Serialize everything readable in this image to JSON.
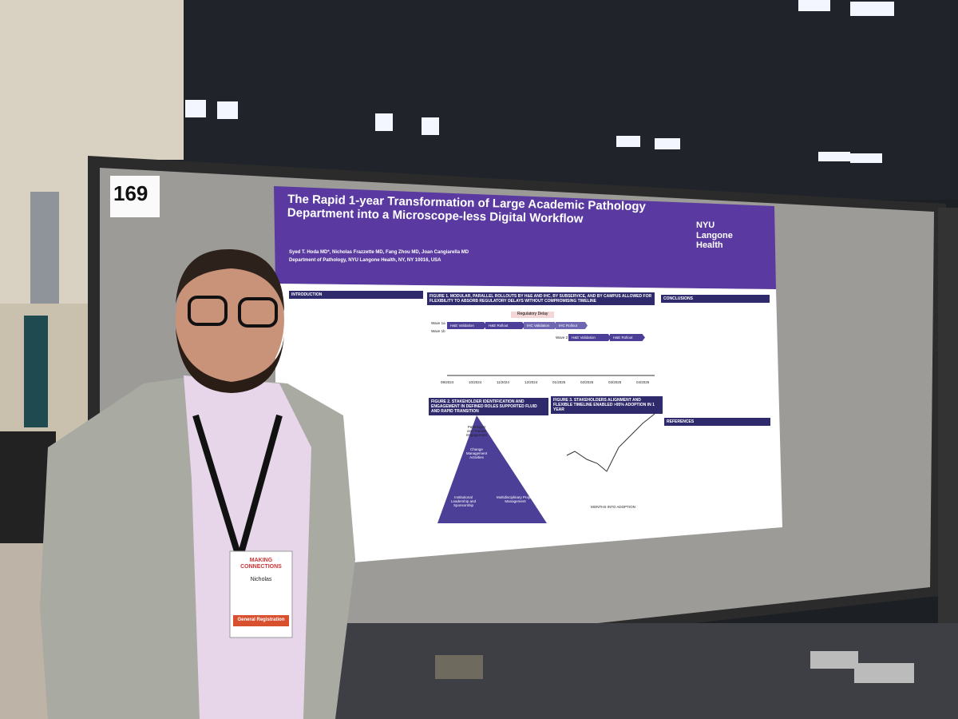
{
  "board_number": "169",
  "poster": {
    "title": "The Rapid 1-year Transformation of Large Academic Pathology Department into a Microscope-less Digital Workflow",
    "authors": "Syed T. Hoda MD*, Nicholas Frazzette MD, Fang Zhou MD, Joan Cangiarella MD",
    "affiliation": "Department of Pathology, NYU Langone Health, NY, NY 10016, USA",
    "logo": "NYU Langone Health",
    "sections": {
      "introduction": "INTRODUCTION",
      "figure1": "FIGURE 1. MODULAR, PARALLEL ROLLOUTS BY H&E AND IHC, BY SUBSERVICE, AND BY CAMPUS ALLOWED FOR FLEXIBILITY TO ABSORB REGULATORY DELAYS WITHOUT COMPROMISING TIMELINE",
      "figure2": "FIGURE 2. STAKEHOLDER IDENTIFICATION AND ENGAGEMENT IN DEFINED ROLES SUPPORTED FLUID AND RAPID TRANSITION",
      "figure3": "FIGURE 3. STAKEHOLDERS ALIGNMENT AND FLEXIBLE TIMELINE ENABLED >95% ADOPTION IN 1 YEAR",
      "conclusions": "CONCLUSIONS",
      "references": "REFERENCES"
    },
    "gantt": {
      "delay": "Regulatory Delay",
      "wave1a": "Wave 1a",
      "wave1b": "Wave 1b",
      "wave2": "Wave 2",
      "bars": [
        "H&E Validation",
        "H&E Rollout",
        "IHC Validation",
        "IHC Rollout"
      ],
      "dates": [
        "09/2024",
        "10/2024",
        "11/2024",
        "12/2024",
        "01/2025",
        "02/2025",
        "03/2025",
        "04/2025"
      ]
    },
    "pyramid": [
      "Pathologist and Trainee Engagement",
      "Change Management Activities",
      "Institutional Leadership and Sponsorship",
      "Multidisciplinary Project Management"
    ],
    "figure3_x_label": "MONTHS INTO ADOPTION"
  },
  "badge": {
    "event": "MAKING CONNECTIONS",
    "name": "Nicholas",
    "ribbon": "General Registration"
  }
}
